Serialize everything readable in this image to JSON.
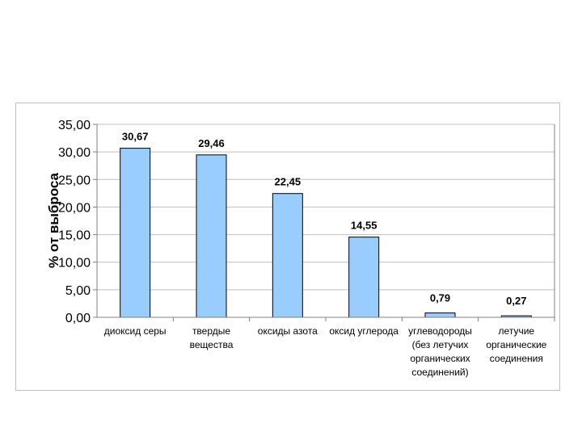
{
  "chart_data": {
    "type": "bar",
    "title": "",
    "xlabel": "",
    "ylabel": "% от выброса",
    "ylim": [
      0,
      35
    ],
    "yticks": [
      "0,00",
      "5,00",
      "10,00",
      "15,00",
      "20,00",
      "25,00",
      "30,00",
      "35,00"
    ],
    "categories": [
      [
        "диоксид серы"
      ],
      [
        "твердые",
        "вещества"
      ],
      [
        "оксиды азота"
      ],
      [
        "оксид углерода"
      ],
      [
        "углеводороды",
        "(без летучих",
        "органических",
        "соединений)"
      ],
      [
        "летучие",
        "органические",
        "соединения"
      ]
    ],
    "values": [
      30.67,
      29.46,
      22.45,
      14.55,
      0.79,
      0.27
    ],
    "data_labels": [
      "30,67",
      "29,46",
      "22,45",
      "14,55",
      "0,79",
      "0,27"
    ],
    "grid": true,
    "legend": "none",
    "colors": {
      "bar_fill": "#99ccff",
      "bar_stroke": "#000000",
      "gridline": "#c0c0c0",
      "axis": "#808080"
    }
  }
}
